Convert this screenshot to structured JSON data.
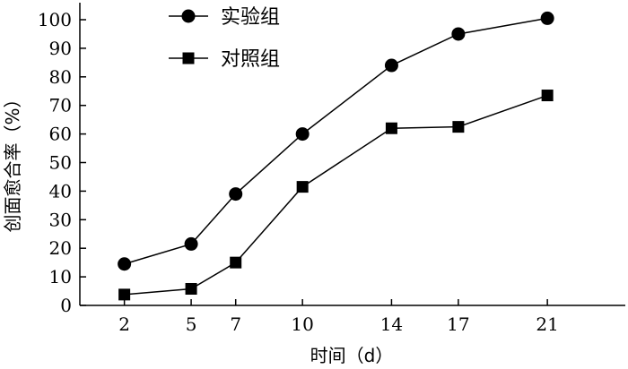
{
  "chart_data": {
    "type": "line",
    "x": [
      2,
      5,
      7,
      10,
      14,
      17,
      21
    ],
    "xlabel": "时间（d）",
    "ylabel": "创面愈合率（%）",
    "xlim": [
      0,
      24.5
    ],
    "ylim": [
      0,
      100
    ],
    "yticks": [
      0,
      10,
      20,
      30,
      40,
      50,
      60,
      70,
      80,
      90,
      100
    ],
    "xticks": [
      2,
      5,
      7,
      10,
      14,
      17,
      21
    ],
    "grid": false,
    "legend_position": "top-left",
    "series": [
      {
        "name": "实验组",
        "marker": "circle",
        "color": "#000000",
        "values": [
          14.5,
          21.5,
          39,
          60,
          84,
          95,
          100.5
        ]
      },
      {
        "name": "对照组",
        "marker": "square",
        "color": "#000000",
        "values": [
          3.8,
          5.8,
          15,
          41.5,
          62,
          62.5,
          73.5
        ]
      }
    ]
  }
}
